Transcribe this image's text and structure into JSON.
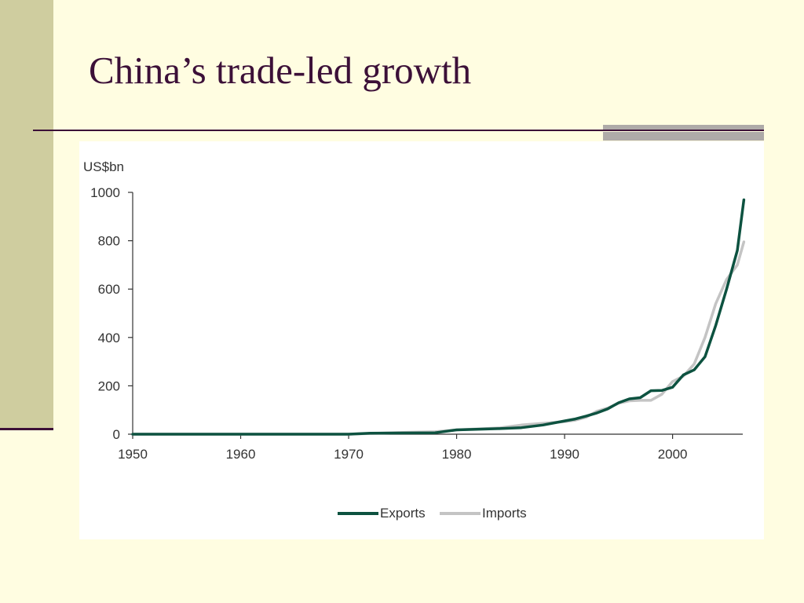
{
  "slide": {
    "title": "China’s trade-led growth"
  },
  "colors": {
    "background": "#fffde1",
    "side_strip": "#cfcd9f",
    "title_text": "#3c1038",
    "accent_gray": "#aeaaa8",
    "exports": "#0d5240",
    "imports": "#c4c4c4"
  },
  "chart_data": {
    "type": "line",
    "title": "",
    "ylabel": "US$bn",
    "xlabel": "",
    "xlim": [
      1950,
      2006.5
    ],
    "ylim": [
      0,
      1000
    ],
    "x_ticks": [
      1950,
      1960,
      1970,
      1980,
      1990,
      2000
    ],
    "y_ticks": [
      0,
      200,
      400,
      600,
      800,
      1000
    ],
    "grid": false,
    "legend_position": "bottom-center",
    "series": [
      {
        "name": "Exports",
        "color": "#0d5240",
        "points": [
          [
            1950,
            0
          ],
          [
            1960,
            0
          ],
          [
            1970,
            0
          ],
          [
            1972,
            4
          ],
          [
            1975,
            5
          ],
          [
            1978,
            6
          ],
          [
            1980,
            18
          ],
          [
            1984,
            23
          ],
          [
            1986,
            27
          ],
          [
            1988,
            38
          ],
          [
            1990,
            55
          ],
          [
            1991,
            63
          ],
          [
            1992,
            75
          ],
          [
            1993,
            88
          ],
          [
            1994,
            105
          ],
          [
            1995,
            130
          ],
          [
            1996,
            146
          ],
          [
            1997,
            151
          ],
          [
            1998,
            180
          ],
          [
            1999,
            181
          ],
          [
            2000,
            194
          ],
          [
            2001,
            245
          ],
          [
            2002,
            266
          ],
          [
            2003,
            320
          ],
          [
            2004,
            450
          ],
          [
            2005,
            600
          ],
          [
            2006,
            760
          ],
          [
            2006.6,
            969
          ]
        ]
      },
      {
        "name": "Imports",
        "color": "#c4c4c4",
        "points": [
          [
            1950,
            0
          ],
          [
            1960,
            0
          ],
          [
            1970,
            0
          ],
          [
            1972,
            3
          ],
          [
            1975,
            7
          ],
          [
            1978,
            10
          ],
          [
            1980,
            18
          ],
          [
            1984,
            26
          ],
          [
            1986,
            38
          ],
          [
            1988,
            45
          ],
          [
            1990,
            52
          ],
          [
            1991,
            58
          ],
          [
            1992,
            70
          ],
          [
            1993,
            95
          ],
          [
            1994,
            108
          ],
          [
            1995,
            128
          ],
          [
            1996,
            138
          ],
          [
            1997,
            140
          ],
          [
            1998,
            140
          ],
          [
            1999,
            165
          ],
          [
            2000,
            218
          ],
          [
            2001,
            240
          ],
          [
            2002,
            290
          ],
          [
            2003,
            400
          ],
          [
            2004,
            540
          ],
          [
            2005,
            640
          ],
          [
            2006,
            700
          ],
          [
            2006.6,
            795
          ]
        ]
      }
    ]
  }
}
